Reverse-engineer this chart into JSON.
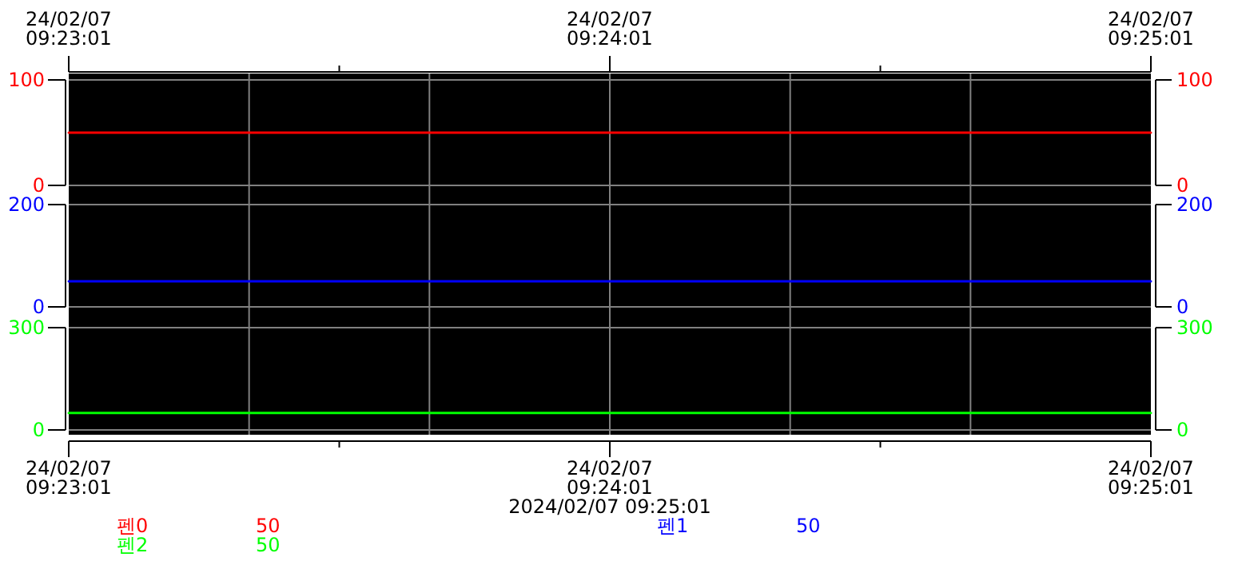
{
  "chart_data": [
    {
      "type": "line",
      "xlim": [
        "2024-02-07T09:23:01",
        "2024-02-07T09:25:01"
      ],
      "x2lim": [
        "2024-02-07T09:23:01",
        "2024-02-07T09:25:01"
      ],
      "x2ticks": [
        {
          "value": "2024-02-07T09:23:01",
          "label": "24/02/07\n09:23:01"
        },
        {
          "value": "2024-02-07T09:23:31",
          "label": null
        },
        {
          "value": "2024-02-07T09:24:01",
          "label": "24/02/07\n09:24:01"
        },
        {
          "value": "2024-02-07T09:24:31",
          "label": null
        },
        {
          "value": "2024-02-07T09:25:01",
          "label": "24/02/07\n09:25:01"
        }
      ],
      "ylim": [
        0,
        100
      ],
      "yticks": [
        0,
        100
      ],
      "y2lim": [
        0,
        100
      ],
      "y2ticks": [
        0,
        100
      ],
      "tick_labels": "y",
      "grid": true,
      "legend": "bottom",
      "series": [
        {
          "name": "펜0",
          "color": "#ff0000",
          "x": [
            "2024-02-07T09:23:01",
            "2024-02-07T09:25:01"
          ],
          "values": [
            50,
            50
          ]
        }
      ],
      "annotations": [
        "50"
      ]
    },
    {
      "type": "line",
      "xlim": [
        "2024-02-07T09:23:01",
        "2024-02-07T09:25:01"
      ],
      "ylim": [
        0,
        200
      ],
      "yticks": [
        0,
        200
      ],
      "y2lim": [
        0,
        200
      ],
      "y2ticks": [
        0,
        200
      ],
      "tick_labels": "y",
      "grid": true,
      "legend": "bottom",
      "series": [
        {
          "name": "펜1",
          "color": "#0000ff",
          "x": [
            "2024-02-07T09:23:01",
            "2024-02-07T09:25:01"
          ],
          "values": [
            50,
            50
          ]
        }
      ],
      "annotations": [
        "50"
      ]
    },
    {
      "type": "line",
      "xlim": [
        "2024-02-07T09:23:01",
        "2024-02-07T09:25:01"
      ],
      "xticks": [
        {
          "value": "2024-02-07T09:23:01",
          "label": "24/02/07\n09:23:01"
        },
        {
          "value": "2024-02-07T09:23:31",
          "label": null
        },
        {
          "value": "2024-02-07T09:24:01",
          "label": "24/02/07\n09:24:01"
        },
        {
          "value": "2024-02-07T09:24:31",
          "label": null
        },
        {
          "value": "2024-02-07T09:25:01",
          "label": "24/02/07\n09:25:01"
        }
      ],
      "xlabel": "2024/02/07 09:25:01",
      "ylim": [
        0,
        300
      ],
      "yticks": [
        0,
        300
      ],
      "y2lim": [
        0,
        300
      ],
      "y2ticks": [
        0,
        300
      ],
      "grid": true,
      "legend": "bottom",
      "series": [
        {
          "name": "펜2",
          "color": "#00ff00",
          "x": [
            "2024-02-07T09:23:01",
            "2024-02-07T09:25:01"
          ],
          "values": [
            50,
            50
          ]
        }
      ],
      "annotations": [
        "50"
      ]
    }
  ]
}
